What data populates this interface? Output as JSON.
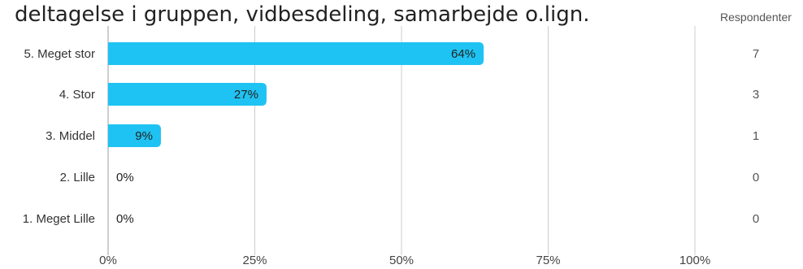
{
  "chart_data": {
    "type": "bar",
    "orientation": "horizontal",
    "title": "deltagelse i gruppen, vidbesdeling, samarbejde o.lign.",
    "categories": [
      "5. Meget stor",
      "4. Stor",
      "3. Middel",
      "2. Lille",
      "1. Meget Lille"
    ],
    "values": [
      64,
      27,
      9,
      0,
      0
    ],
    "data_labels": [
      "64%",
      "27%",
      "9%",
      "0%",
      "0%"
    ],
    "counts_header": "Respondenter",
    "counts": [
      7,
      3,
      1,
      0,
      0
    ],
    "x_ticks": [
      "0%",
      "25%",
      "50%",
      "75%",
      "100%"
    ],
    "xlim": [
      0,
      100
    ],
    "grid": true,
    "bar_color": "#1fc3f3",
    "gridline_color": "#cccccc"
  }
}
